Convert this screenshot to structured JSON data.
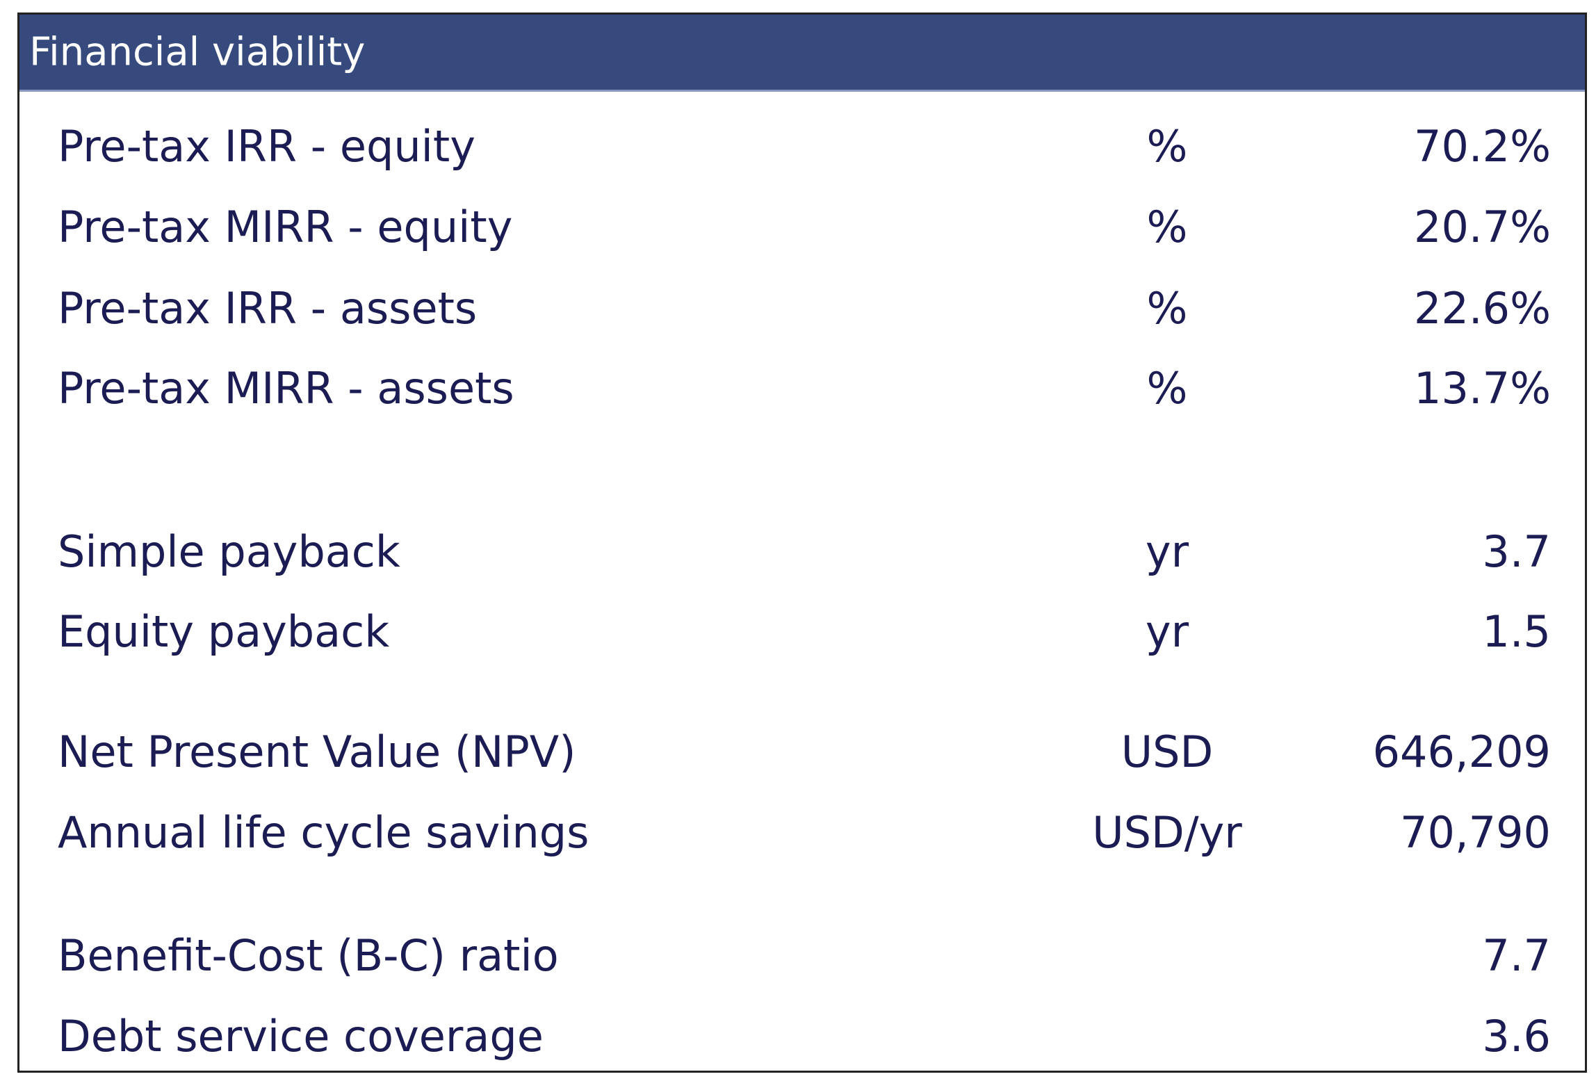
{
  "header": {
    "title": "Financial viability"
  },
  "table": {
    "rows": [
      {
        "label": "Pre-tax IRR - equity",
        "unit": "%",
        "value": "70.2%"
      },
      {
        "label": "Pre-tax MIRR - equity",
        "unit": "%",
        "value": "20.7%"
      },
      {
        "label": "Pre-tax IRR - assets",
        "unit": "%",
        "value": "22.6%"
      },
      {
        "label": "Pre-tax MIRR - assets",
        "unit": "%",
        "value": "13.7%"
      },
      {
        "label": "Simple payback",
        "unit": "yr",
        "value": "3.7"
      },
      {
        "label": "Equity payback",
        "unit": "yr",
        "value": "1.5"
      },
      {
        "label": "Net Present Value (NPV)",
        "unit": "USD",
        "value": "646,209"
      },
      {
        "label": "Annual life cycle savings",
        "unit": "USD/yr",
        "value": "70,790"
      },
      {
        "label": "Benefit-Cost (B-C) ratio",
        "value": "7.7"
      },
      {
        "label": "Debt service coverage",
        "value": "3.6"
      }
    ]
  }
}
